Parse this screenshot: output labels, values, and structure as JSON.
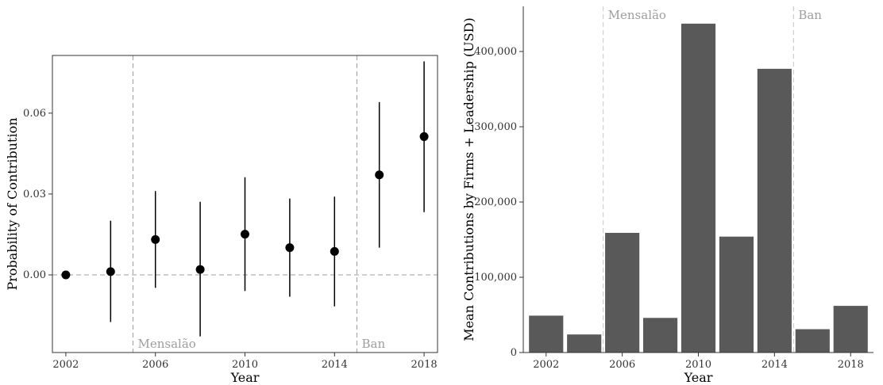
{
  "chart_data": [
    {
      "type": "scatter",
      "xlabel": "Year",
      "ylabel": "Probability of Contribution",
      "xlim": [
        2001.4,
        2018.6
      ],
      "ylim": [
        -0.0288,
        0.0814
      ],
      "x_ticks": [
        2002,
        2006,
        2010,
        2014,
        2018
      ],
      "x_tick_labels": [
        "2002",
        "2006",
        "2010",
        "2014",
        "2018"
      ],
      "y_ticks": [
        0.0,
        0.03,
        0.06
      ],
      "y_tick_labels": [
        "0.00",
        "0.03",
        "0.06"
      ],
      "reference_line_y": 0,
      "grid": false,
      "points": [
        {
          "x": 2002,
          "y": 0.0,
          "lo": 0.0,
          "hi": 0.0
        },
        {
          "x": 2004,
          "y": 0.0012,
          "lo": -0.0175,
          "hi": 0.0201
        },
        {
          "x": 2006,
          "y": 0.0131,
          "lo": -0.0048,
          "hi": 0.0311
        },
        {
          "x": 2008,
          "y": 0.002,
          "lo": -0.0228,
          "hi": 0.0271
        },
        {
          "x": 2010,
          "y": 0.0151,
          "lo": -0.006,
          "hi": 0.0362
        },
        {
          "x": 2012,
          "y": 0.0101,
          "lo": -0.0081,
          "hi": 0.0283
        },
        {
          "x": 2014,
          "y": 0.0087,
          "lo": -0.0117,
          "hi": 0.029
        },
        {
          "x": 2016,
          "y": 0.0371,
          "lo": 0.0101,
          "hi": 0.0641
        },
        {
          "x": 2018,
          "y": 0.0513,
          "lo": 0.0233,
          "hi": 0.0792
        }
      ],
      "vertical_lines": [
        {
          "x": 2005,
          "label": "Mensalão"
        },
        {
          "x": 2015,
          "label": "Ban"
        }
      ]
    },
    {
      "type": "bar",
      "xlabel": "Year",
      "ylabel": "Mean Contributions by Firms + Leadership (USD)",
      "xlim": [
        2000.8,
        2019.2
      ],
      "ylim": [
        0,
        460000
      ],
      "x_ticks": [
        2002,
        2006,
        2010,
        2014,
        2018
      ],
      "x_tick_labels": [
        "2002",
        "2006",
        "2010",
        "2014",
        "2018"
      ],
      "y_ticks": [
        0,
        100000,
        200000,
        300000,
        400000
      ],
      "y_tick_labels": [
        "0",
        "100,000",
        "200,000",
        "300,000",
        "400,000"
      ],
      "grid": false,
      "categories": [
        2002,
        2004,
        2006,
        2008,
        2010,
        2012,
        2014,
        2016,
        2018
      ],
      "values": [
        49000,
        24000,
        159000,
        46000,
        437000,
        154000,
        377000,
        31000,
        62000
      ],
      "vertical_lines": [
        {
          "x": 2005,
          "label": "Mensalão"
        },
        {
          "x": 2015,
          "label": "Ban"
        }
      ]
    }
  ]
}
